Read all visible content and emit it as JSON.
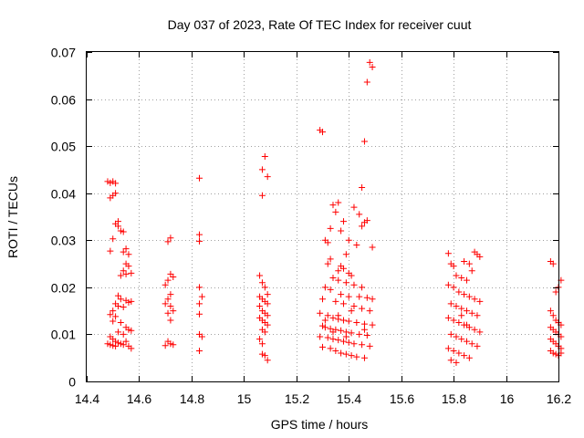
{
  "chart_data": {
    "type": "scatter",
    "title": "Day 037 of 2023, Rate Of TEC Index for receiver cuut",
    "xlabel": "GPS time / hours",
    "ylabel": "ROTI / TECUs",
    "xlim": [
      14.4,
      16.2
    ],
    "ylim": [
      0,
      0.07
    ],
    "xticks": [
      "14.4",
      "14.6",
      "14.8",
      "15",
      "15.2",
      "15.4",
      "15.6",
      "15.8",
      "16",
      "16.2"
    ],
    "yticks": [
      "0",
      "0.01",
      "0.02",
      "0.03",
      "0.04",
      "0.05",
      "0.06",
      "0.07"
    ],
    "grid": true,
    "marker": "+",
    "color": "#ff0000",
    "series": [
      {
        "points": [
          [
            14.48,
            0.0425
          ],
          [
            14.49,
            0.0422
          ],
          [
            14.5,
            0.0425
          ],
          [
            14.51,
            0.0421
          ],
          [
            14.49,
            0.039
          ],
          [
            14.5,
            0.0395
          ],
          [
            14.51,
            0.04
          ],
          [
            14.52,
            0.034
          ],
          [
            14.51,
            0.0335
          ],
          [
            14.52,
            0.033
          ],
          [
            14.53,
            0.032
          ],
          [
            14.54,
            0.0318
          ],
          [
            14.5,
            0.0303
          ],
          [
            14.49,
            0.0277
          ],
          [
            14.55,
            0.0282
          ],
          [
            14.54,
            0.0275
          ],
          [
            14.56,
            0.027
          ],
          [
            14.55,
            0.025
          ],
          [
            14.56,
            0.0245
          ],
          [
            14.54,
            0.0235
          ],
          [
            14.53,
            0.0225
          ],
          [
            14.55,
            0.0228
          ],
          [
            14.57,
            0.023
          ],
          [
            14.52,
            0.0182
          ],
          [
            14.53,
            0.0175
          ],
          [
            14.55,
            0.0172
          ],
          [
            14.56,
            0.0168
          ],
          [
            14.57,
            0.017
          ],
          [
            14.51,
            0.0165
          ],
          [
            14.52,
            0.016
          ],
          [
            14.54,
            0.0158
          ],
          [
            14.5,
            0.015
          ],
          [
            14.49,
            0.0142
          ],
          [
            14.51,
            0.0138
          ],
          [
            14.5,
            0.0128
          ],
          [
            14.53,
            0.0125
          ],
          [
            14.55,
            0.0115
          ],
          [
            14.56,
            0.011
          ],
          [
            14.57,
            0.0108
          ],
          [
            14.52,
            0.0105
          ],
          [
            14.54,
            0.01
          ],
          [
            14.49,
            0.0095
          ],
          [
            14.5,
            0.009
          ],
          [
            14.51,
            0.0085
          ],
          [
            14.52,
            0.0082
          ],
          [
            14.48,
            0.008
          ],
          [
            14.49,
            0.0078
          ],
          [
            14.5,
            0.0076
          ],
          [
            14.53,
            0.008
          ],
          [
            14.54,
            0.0078
          ],
          [
            14.56,
            0.0075
          ],
          [
            14.57,
            0.007
          ],
          [
            14.51,
            0.0075
          ],
          [
            14.55,
            0.0085
          ],
          [
            14.72,
            0.0305
          ],
          [
            14.71,
            0.0297
          ],
          [
            14.72,
            0.0228
          ],
          [
            14.73,
            0.0222
          ],
          [
            14.71,
            0.0215
          ],
          [
            14.7,
            0.0205
          ],
          [
            14.72,
            0.0185
          ],
          [
            14.71,
            0.0175
          ],
          [
            14.7,
            0.0165
          ],
          [
            14.72,
            0.016
          ],
          [
            14.73,
            0.015
          ],
          [
            14.71,
            0.0145
          ],
          [
            14.72,
            0.013
          ],
          [
            14.71,
            0.0085
          ],
          [
            14.72,
            0.008
          ],
          [
            14.7,
            0.0076
          ],
          [
            14.73,
            0.0078
          ],
          [
            14.83,
            0.0432
          ],
          [
            14.83,
            0.0312
          ],
          [
            14.83,
            0.0298
          ],
          [
            14.83,
            0.02
          ],
          [
            14.84,
            0.018
          ],
          [
            14.83,
            0.0165
          ],
          [
            14.83,
            0.0143
          ],
          [
            14.83,
            0.01
          ],
          [
            14.84,
            0.0095
          ],
          [
            14.83,
            0.0065
          ],
          [
            15.08,
            0.0478
          ],
          [
            15.07,
            0.045
          ],
          [
            15.09,
            0.0435
          ],
          [
            15.07,
            0.0395
          ],
          [
            15.06,
            0.0225
          ],
          [
            15.07,
            0.021
          ],
          [
            15.08,
            0.02
          ],
          [
            15.09,
            0.0185
          ],
          [
            15.06,
            0.018
          ],
          [
            15.07,
            0.0175
          ],
          [
            15.08,
            0.017
          ],
          [
            15.09,
            0.0165
          ],
          [
            15.06,
            0.016
          ],
          [
            15.07,
            0.015
          ],
          [
            15.08,
            0.0145
          ],
          [
            15.09,
            0.014
          ],
          [
            15.06,
            0.0135
          ],
          [
            15.07,
            0.013
          ],
          [
            15.08,
            0.0125
          ],
          [
            15.09,
            0.012
          ],
          [
            15.07,
            0.011
          ],
          [
            15.08,
            0.0105
          ],
          [
            15.06,
            0.009
          ],
          [
            15.07,
            0.008
          ],
          [
            15.07,
            0.0058
          ],
          [
            15.08,
            0.0055
          ],
          [
            15.09,
            0.0045
          ],
          [
            15.29,
            0.0534
          ],
          [
            15.3,
            0.053
          ],
          [
            15.46,
            0.051
          ],
          [
            15.47,
            0.0636
          ],
          [
            15.48,
            0.0678
          ],
          [
            15.49,
            0.0668
          ],
          [
            15.45,
            0.0412
          ],
          [
            15.36,
            0.038
          ],
          [
            15.34,
            0.0375
          ],
          [
            15.42,
            0.037
          ],
          [
            15.44,
            0.0355
          ],
          [
            15.35,
            0.036
          ],
          [
            15.38,
            0.034
          ],
          [
            15.46,
            0.0338
          ],
          [
            15.47,
            0.0342
          ],
          [
            15.45,
            0.033
          ],
          [
            15.33,
            0.0325
          ],
          [
            15.37,
            0.032
          ],
          [
            15.4,
            0.03
          ],
          [
            15.31,
            0.03
          ],
          [
            15.32,
            0.0295
          ],
          [
            15.49,
            0.0285
          ],
          [
            15.43,
            0.029
          ],
          [
            15.39,
            0.027
          ],
          [
            15.33,
            0.026
          ],
          [
            15.32,
            0.025
          ],
          [
            15.37,
            0.0245
          ],
          [
            15.38,
            0.024
          ],
          [
            15.36,
            0.0235
          ],
          [
            15.4,
            0.023
          ],
          [
            15.41,
            0.0225
          ],
          [
            15.34,
            0.022
          ],
          [
            15.36,
            0.0215
          ],
          [
            15.39,
            0.021
          ],
          [
            15.42,
            0.0205
          ],
          [
            15.45,
            0.02
          ],
          [
            15.31,
            0.02
          ],
          [
            15.33,
            0.0195
          ],
          [
            15.37,
            0.0185
          ],
          [
            15.4,
            0.018
          ],
          [
            15.44,
            0.018
          ],
          [
            15.47,
            0.0178
          ],
          [
            15.49,
            0.0175
          ],
          [
            15.3,
            0.0175
          ],
          [
            15.35,
            0.017
          ],
          [
            15.38,
            0.0165
          ],
          [
            15.42,
            0.016
          ],
          [
            15.45,
            0.0155
          ],
          [
            15.48,
            0.015
          ],
          [
            15.29,
            0.0145
          ],
          [
            15.32,
            0.014
          ],
          [
            15.34,
            0.0135
          ],
          [
            15.36,
            0.0132
          ],
          [
            15.38,
            0.013
          ],
          [
            15.4,
            0.0128
          ],
          [
            15.43,
            0.0125
          ],
          [
            15.46,
            0.0122
          ],
          [
            15.49,
            0.012
          ],
          [
            15.3,
            0.0118
          ],
          [
            15.31,
            0.0115
          ],
          [
            15.33,
            0.0112
          ],
          [
            15.35,
            0.011
          ],
          [
            15.37,
            0.0108
          ],
          [
            15.39,
            0.0105
          ],
          [
            15.41,
            0.0103
          ],
          [
            15.44,
            0.01
          ],
          [
            15.47,
            0.0098
          ],
          [
            15.29,
            0.0095
          ],
          [
            15.32,
            0.0093
          ],
          [
            15.34,
            0.009
          ],
          [
            15.36,
            0.0088
          ],
          [
            15.38,
            0.0085
          ],
          [
            15.4,
            0.0083
          ],
          [
            15.42,
            0.008
          ],
          [
            15.45,
            0.0078
          ],
          [
            15.48,
            0.0075
          ],
          [
            15.3,
            0.0073
          ],
          [
            15.33,
            0.007
          ],
          [
            15.35,
            0.0065
          ],
          [
            15.37,
            0.006
          ],
          [
            15.39,
            0.0058
          ],
          [
            15.41,
            0.0055
          ],
          [
            15.43,
            0.0052
          ],
          [
            15.46,
            0.005
          ],
          [
            15.31,
            0.013
          ],
          [
            15.36,
            0.014
          ],
          [
            15.41,
            0.015
          ],
          [
            15.46,
            0.011
          ],
          [
            15.34,
            0.0105
          ],
          [
            15.39,
            0.0095
          ],
          [
            15.78,
            0.0272
          ],
          [
            15.79,
            0.025
          ],
          [
            15.8,
            0.0245
          ],
          [
            15.84,
            0.0255
          ],
          [
            15.86,
            0.025
          ],
          [
            15.88,
            0.0275
          ],
          [
            15.89,
            0.027
          ],
          [
            15.9,
            0.0265
          ],
          [
            15.87,
            0.0235
          ],
          [
            15.81,
            0.0225
          ],
          [
            15.83,
            0.022
          ],
          [
            15.85,
            0.0215
          ],
          [
            15.78,
            0.0205
          ],
          [
            15.8,
            0.02
          ],
          [
            15.82,
            0.019
          ],
          [
            15.84,
            0.0185
          ],
          [
            15.86,
            0.018
          ],
          [
            15.88,
            0.0175
          ],
          [
            15.9,
            0.017
          ],
          [
            15.79,
            0.0165
          ],
          [
            15.81,
            0.016
          ],
          [
            15.83,
            0.0155
          ],
          [
            15.85,
            0.015
          ],
          [
            15.87,
            0.0145
          ],
          [
            15.89,
            0.014
          ],
          [
            15.78,
            0.0135
          ],
          [
            15.8,
            0.013
          ],
          [
            15.82,
            0.0125
          ],
          [
            15.84,
            0.012
          ],
          [
            15.86,
            0.0115
          ],
          [
            15.88,
            0.011
          ],
          [
            15.9,
            0.0105
          ],
          [
            15.79,
            0.01
          ],
          [
            15.81,
            0.0095
          ],
          [
            15.83,
            0.009
          ],
          [
            15.85,
            0.0085
          ],
          [
            15.87,
            0.008
          ],
          [
            15.89,
            0.0075
          ],
          [
            15.78,
            0.007
          ],
          [
            15.8,
            0.0065
          ],
          [
            15.82,
            0.006
          ],
          [
            15.84,
            0.0055
          ],
          [
            15.86,
            0.005
          ],
          [
            15.79,
            0.0045
          ],
          [
            15.81,
            0.004
          ],
          [
            15.85,
            0.012
          ],
          [
            15.83,
            0.014
          ],
          [
            16.17,
            0.0255
          ],
          [
            16.18,
            0.025
          ],
          [
            16.21,
            0.0215
          ],
          [
            16.2,
            0.02
          ],
          [
            16.19,
            0.019
          ],
          [
            16.17,
            0.015
          ],
          [
            16.18,
            0.014
          ],
          [
            16.19,
            0.013
          ],
          [
            16.2,
            0.0125
          ],
          [
            16.21,
            0.012
          ],
          [
            16.17,
            0.0115
          ],
          [
            16.18,
            0.011
          ],
          [
            16.19,
            0.0105
          ],
          [
            16.2,
            0.01
          ],
          [
            16.21,
            0.0095
          ],
          [
            16.17,
            0.009
          ],
          [
            16.18,
            0.0085
          ],
          [
            16.19,
            0.008
          ],
          [
            16.2,
            0.0075
          ],
          [
            16.21,
            0.007
          ],
          [
            16.17,
            0.0065
          ],
          [
            16.18,
            0.006
          ],
          [
            16.19,
            0.0058
          ],
          [
            16.2,
            0.0055
          ],
          [
            16.21,
            0.006
          ]
        ]
      }
    ]
  }
}
